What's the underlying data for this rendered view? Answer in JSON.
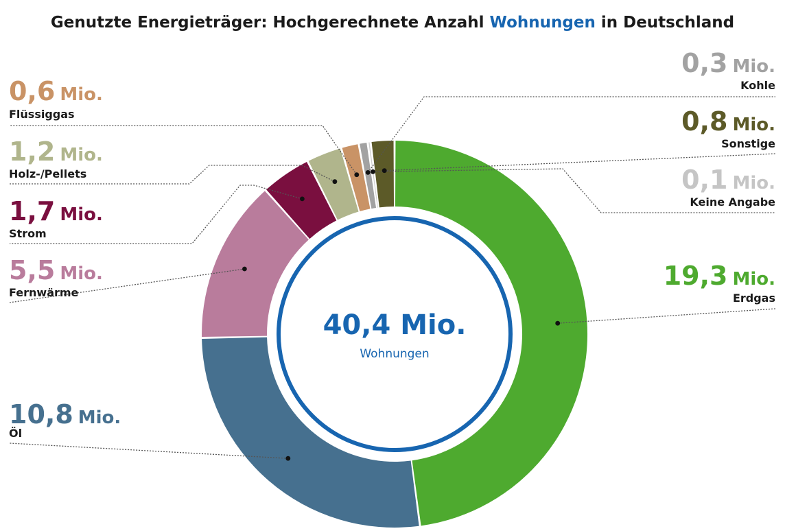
{
  "title": {
    "prefix": "Genutzte Energieträger: Hochgerechnete Anzahl ",
    "highlight": "Wohnungen",
    "suffix": " in Deutschland"
  },
  "total": {
    "value": "40,4 Mio.",
    "label": "Wohnungen"
  },
  "unit": "Mio.",
  "chart_data": {
    "type": "pie",
    "variant": "donut",
    "title": "Genutzte Energieträger: Hochgerechnete Anzahl Wohnungen in Deutschland",
    "total": 40.4,
    "unit": "Mio.",
    "order": "clockwise from top",
    "slices": [
      {
        "label": "Erdgas",
        "value": 19.3,
        "value_label": "19,3",
        "color": "#4eaa2f"
      },
      {
        "label": "Öl",
        "value": 10.8,
        "value_label": "10,8",
        "color": "#46708f"
      },
      {
        "label": "Fernwärme",
        "value": 5.5,
        "value_label": "5,5",
        "color": "#b97c9c"
      },
      {
        "label": "Strom",
        "value": 1.7,
        "value_label": "1,7",
        "color": "#7a0f3f"
      },
      {
        "label": "Holz-/Pellets",
        "value": 1.2,
        "value_label": "1,2",
        "color": "#b0b58c"
      },
      {
        "label": "Flüssiggas",
        "value": 0.6,
        "value_label": "0,6",
        "color": "#c99366"
      },
      {
        "label": "Kohle",
        "value": 0.3,
        "value_label": "0,3",
        "color": "#a2a2a2"
      },
      {
        "label": "Keine Angabe",
        "value": 0.1,
        "value_label": "0,1",
        "color": "#cfcfcf"
      },
      {
        "label": "Sonstige",
        "value": 0.8,
        "value_label": "0,8",
        "color": "#5c5a28"
      }
    ],
    "colors": {
      "title": "#1a1a1a",
      "accent": "#1765b0",
      "Kohle_text": "#a2a2a2",
      "Keine_Angabe_text": "#c5c5c5"
    }
  }
}
